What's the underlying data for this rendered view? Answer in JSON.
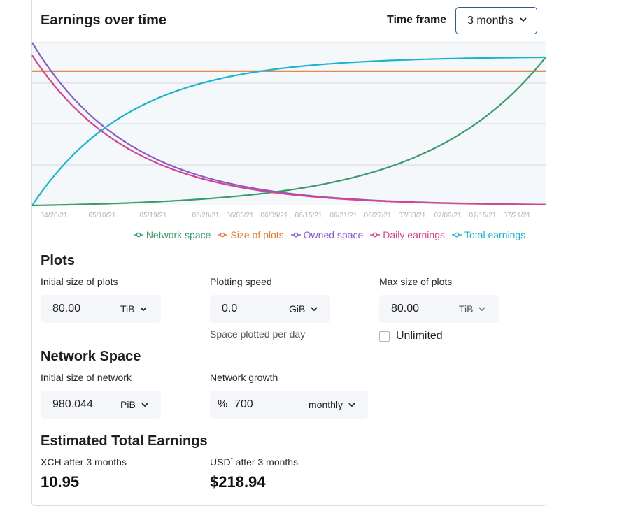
{
  "header": {
    "title": "Earnings over time",
    "time_frame_label": "Time frame",
    "time_frame_value": "3 months"
  },
  "chart_data": {
    "type": "line",
    "x": [
      "04/28/21",
      "05/10/21",
      "05/19/21",
      "05/28/21",
      "06/03/21",
      "06/09/21",
      "06/15/21",
      "06/21/21",
      "06/27/21",
      "07/03/21",
      "07/09/21",
      "07/15/21",
      "07/21/21"
    ],
    "series": [
      {
        "name": "Network space",
        "color": "#3a9b6a",
        "values": [
          0,
          0.01,
          0.02,
          0.04,
          0.06,
          0.09,
          0.12,
          0.17,
          0.24,
          0.34,
          0.48,
          0.68,
          0.85
        ]
      },
      {
        "name": "Size of plots",
        "color": "#e07b39",
        "values": [
          0.82,
          0.82,
          0.82,
          0.82,
          0.82,
          0.82,
          0.82,
          0.82,
          0.82,
          0.82,
          0.82,
          0.82,
          0.82
        ]
      },
      {
        "name": "Owned space",
        "color": "#8a5cc8",
        "values": [
          1.0,
          0.48,
          0.26,
          0.14,
          0.1,
          0.07,
          0.05,
          0.03,
          0.02,
          0.015,
          0.01,
          0.007,
          0.005
        ]
      },
      {
        "name": "Daily earnings",
        "color": "#d3458c",
        "values": [
          0.92,
          0.46,
          0.24,
          0.13,
          0.09,
          0.06,
          0.04,
          0.03,
          0.02,
          0.015,
          0.01,
          0.007,
          0.005
        ]
      },
      {
        "name": "Total earnings",
        "color": "#1ab3c9",
        "values": [
          0,
          0.48,
          0.7,
          0.82,
          0.86,
          0.88,
          0.9,
          0.91,
          0.92,
          0.925,
          0.93,
          0.935,
          0.94
        ]
      }
    ],
    "grid": true,
    "legend_position": "bottom"
  },
  "legend": [
    {
      "label": "Network space",
      "color": "#3a9b6a"
    },
    {
      "label": "Size of plots",
      "color": "#e07b39"
    },
    {
      "label": "Owned space",
      "color": "#8a5cc8"
    },
    {
      "label": "Daily earnings",
      "color": "#d3458c"
    },
    {
      "label": "Total earnings",
      "color": "#1ab3c9"
    }
  ],
  "plots": {
    "title": "Plots",
    "initial_size_label": "Initial size of plots",
    "initial_size_value": "80.00",
    "initial_size_unit": "TiB",
    "plotting_speed_label": "Plotting speed",
    "plotting_speed_value": "0.0",
    "plotting_speed_unit": "GiB",
    "plotting_speed_note": "Space plotted per day",
    "max_size_label": "Max size of plots",
    "max_size_value": "80.00",
    "max_size_unit": "TiB",
    "unlimited_label": "Unlimited"
  },
  "network": {
    "title": "Network Space",
    "initial_size_label": "Initial size of network",
    "initial_size_value": "980.044",
    "initial_size_unit": "PiB",
    "growth_label": "Network growth",
    "growth_prefix": "%",
    "growth_value": "700",
    "growth_period": "monthly"
  },
  "earnings": {
    "title": "Estimated Total Earnings",
    "xch_label": "XCH after 3 months",
    "xch_value": "10.95",
    "usd_label_prefix": "USD",
    "usd_label_sup": "*",
    "usd_label_suffix": " after 3 months",
    "usd_value": "$218.94"
  },
  "icons": {
    "chevron": "chevron-down-icon"
  }
}
